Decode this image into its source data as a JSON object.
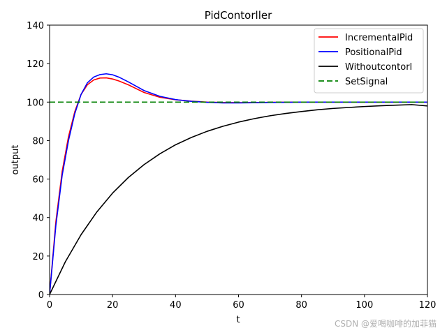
{
  "chart_data": {
    "type": "line",
    "title": "PidContorller",
    "xlabel": "t",
    "ylabel": "output",
    "xlim": [
      0,
      120
    ],
    "ylim": [
      0,
      140
    ],
    "xticks": [
      0,
      20,
      40,
      60,
      80,
      100,
      120
    ],
    "yticks": [
      0,
      20,
      40,
      60,
      80,
      100,
      120,
      140
    ],
    "grid": false,
    "legend_position": "top-right",
    "series": [
      {
        "name": "IncrementalPid",
        "color": "#ff0000",
        "style": "solid",
        "x": [
          0,
          2,
          4,
          6,
          8,
          10,
          12,
          14,
          16,
          18,
          20,
          22,
          25,
          30,
          35,
          40,
          45,
          50,
          55,
          60,
          70,
          80,
          100,
          120
        ],
        "y": [
          0,
          38,
          64,
          82,
          95,
          104,
          109,
          111.5,
          112.5,
          112.6,
          112,
          111,
          109,
          105,
          102.5,
          101.2,
          100.5,
          100,
          99.8,
          99.7,
          99.9,
          100,
          100,
          100
        ]
      },
      {
        "name": "PositionalPid",
        "color": "#0000ff",
        "style": "solid",
        "x": [
          0,
          2,
          4,
          6,
          8,
          10,
          12,
          14,
          16,
          18,
          20,
          22,
          25,
          30,
          35,
          40,
          45,
          50,
          55,
          60,
          70,
          80,
          100,
          120
        ],
        "y": [
          0,
          36,
          62,
          80,
          94,
          104,
          110,
          113,
          114.3,
          114.7,
          114.2,
          113,
          110.5,
          106,
          103,
          101.3,
          100.4,
          99.9,
          99.6,
          99.6,
          99.8,
          100,
          100,
          100
        ]
      },
      {
        "name": "Withoutcontorl",
        "color": "#000000",
        "style": "solid",
        "x": [
          0,
          5,
          10,
          15,
          20,
          25,
          30,
          35,
          40,
          45,
          50,
          55,
          60,
          65,
          70,
          75,
          80,
          85,
          90,
          95,
          100,
          105,
          110,
          115,
          120
        ],
        "y": [
          0,
          17.0,
          31.1,
          42.9,
          52.7,
          60.8,
          67.5,
          73.1,
          77.8,
          81.6,
          84.8,
          87.4,
          89.6,
          91.4,
          92.9,
          94.1,
          95.1,
          96.0,
          96.7,
          97.2,
          97.7,
          98.1,
          98.4,
          98.7,
          98.0
        ]
      },
      {
        "name": "SetSignal",
        "color": "#008000",
        "style": "dashed",
        "x": [
          0,
          120
        ],
        "y": [
          100,
          100
        ]
      }
    ]
  },
  "watermark": "CSDN @爱喝咖啡的加菲猫"
}
